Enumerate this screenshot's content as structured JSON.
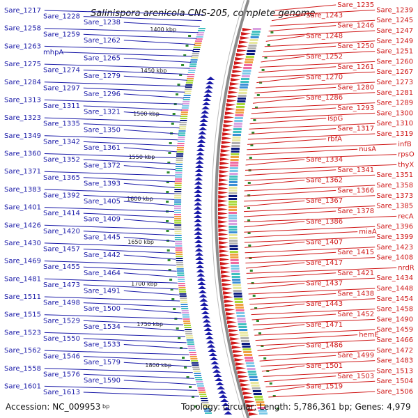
{
  "title": "Salinispora arenicola CNS-205, complete genome",
  "footer": {
    "accession": "Accession: NC_009953",
    "bp_unit": "bp",
    "summary": "Topology: circular; Length: 5,786,361 bp; Genes: 4,979"
  },
  "colors": {
    "forward_gene": "#d01818",
    "reverse_gene": "#1a1aa8",
    "backbone": "#8c8c8c",
    "kbp_tick": "#2e8b2e"
  },
  "kbp_marks": [
    "1400 kbp",
    "1450 kbp",
    "1500 kbp",
    "1550 kbp",
    "1600 kbp",
    "1650 kbp",
    "1700 kbp",
    "1750 kbp",
    "1800 kbp"
  ],
  "left_labels": [
    "Sare_1217",
    "Sare_1228",
    "Sare_1238",
    "Sare_1258",
    "Sare_1259",
    "Sare_1262",
    "Sare_1263",
    "mhpA",
    "Sare_1265",
    "Sare_1275",
    "Sare_1274",
    "Sare_1279",
    "Sare_1284",
    "Sare_1297",
    "Sare_1296",
    "Sare_1313",
    "Sare_1311",
    "Sare_1321",
    "Sare_1323",
    "Sare_1335",
    "Sare_1350",
    "Sare_1349",
    "Sare_1342",
    "Sare_1361",
    "Sare_1360",
    "Sare_1352",
    "Sare_1372",
    "Sare_1371",
    "Sare_1365",
    "Sare_1393",
    "Sare_1383",
    "Sare_1392",
    "Sare_1405",
    "Sare_1401",
    "Sare_1414",
    "Sare_1409",
    "Sare_1426",
    "Sare_1420",
    "Sare_1445",
    "Sare_1430",
    "Sare_1457",
    "Sare_1442",
    "Sare_1469",
    "Sare_1455",
    "Sare_1464",
    "Sare_1481",
    "Sare_1473",
    "Sare_1491",
    "Sare_1511",
    "Sare_1498",
    "Sare_1500",
    "Sare_1515",
    "Sare_1529",
    "Sare_1534",
    "Sare_1523",
    "Sare_1550",
    "Sare_1533",
    "Sare_1562",
    "Sare_1546",
    "Sare_1579",
    "Sare_1558",
    "Sare_1576",
    "Sare_1590",
    "Sare_1601",
    "Sare_1613"
  ],
  "right_labels": [
    "Sare_1235",
    "Sare_1239",
    "Sare_1243",
    "Sare_1245",
    "Sare_1246",
    "Sare_1247",
    "Sare_1248",
    "Sare_1249",
    "Sare_1250",
    "Sare_1251",
    "Sare_1252",
    "Sare_1260",
    "Sare_1261",
    "Sare_1267",
    "Sare_1270",
    "Sare_1273",
    "Sare_1280",
    "Sare_1281",
    "Sare_1286",
    "Sare_1289",
    "Sare_1293",
    "Sare_1300",
    "ispG",
    "Sare_1310",
    "Sare_1317",
    "Sare_1319",
    "rbfA",
    "infB",
    "nusA",
    "rpsO",
    "Sare_1334",
    "thyX",
    "Sare_1341",
    "Sare_1351",
    "Sare_1362",
    "Sare_1358",
    "Sare_1366",
    "Sare_1373",
    "Sare_1367",
    "Sare_1385",
    "Sare_1378",
    "recA",
    "Sare_1386",
    "Sare_1396",
    "miaA",
    "Sare_1399",
    "Sare_1407",
    "Sare_1423",
    "Sare_1415",
    "Sare_1408",
    "Sare_1417",
    "nrdR",
    "Sare_1421",
    "Sare_1434",
    "Sare_1437",
    "Sare_1448",
    "Sare_1438",
    "Sare_1454",
    "Sare_1443",
    "Sare_1458",
    "Sare_1452",
    "Sare_1490",
    "Sare_1471",
    "Sare_1459",
    "hemE",
    "Sare_1466",
    "Sare_1486",
    "Sare_1472",
    "Sare_1499",
    "Sare_1483",
    "Sare_1501",
    "Sare_1513",
    "Sare_1503",
    "Sare_1504",
    "Sare_1519",
    "Sare_1506"
  ]
}
